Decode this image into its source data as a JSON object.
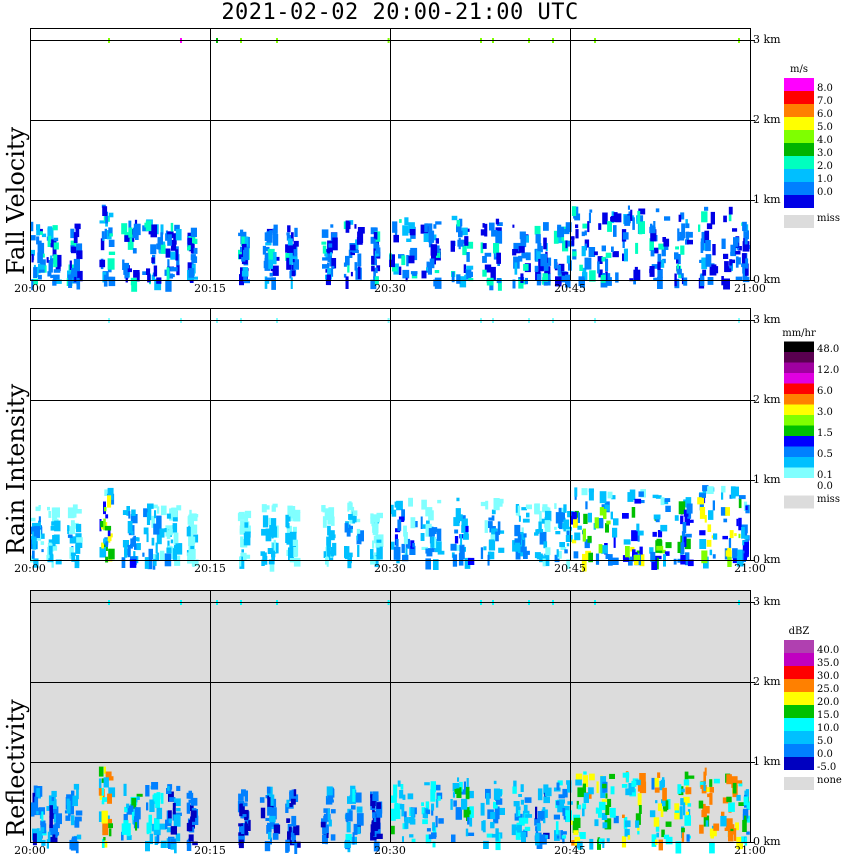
{
  "title": "2021-02-02   20:00-21:00 UTC",
  "x_ticks": [
    "20:00",
    "20:15",
    "20:30",
    "20:45",
    "21:00"
  ],
  "y_ticks": [
    "3 km",
    "2 km",
    "1 km",
    "0 km"
  ],
  "colors": {
    "missing": "#dcdcdc",
    "grid": "#000000"
  },
  "panels": [
    {
      "id": "fall",
      "label": "Fall Velocity",
      "unit": "m/s",
      "background": "#ffffff",
      "colorbar": [
        {
          "label": "8.0",
          "color": "#ff00ff"
        },
        {
          "label": "7.0",
          "color": "#ff0000"
        },
        {
          "label": "6.0",
          "color": "#ff7f00"
        },
        {
          "label": "5.0",
          "color": "#ffff00"
        },
        {
          "label": "4.0",
          "color": "#7fff00"
        },
        {
          "label": "3.0",
          "color": "#00b400"
        },
        {
          "label": "2.0",
          "color": "#00ffbf"
        },
        {
          "label": "1.0",
          "color": "#00bfff"
        },
        {
          "label": "0.0",
          "color": "#007fff"
        },
        {
          "label": "",
          "color": "#0000e6"
        }
      ],
      "miss_label": "miss"
    },
    {
      "id": "rain",
      "label": "Rain Intensity",
      "unit": "mm/hr",
      "background": "#ffffff",
      "colorbar": [
        {
          "label": "48.0",
          "color": "#000000"
        },
        {
          "label": "",
          "color": "#5a0050"
        },
        {
          "label": "12.0",
          "color": "#a000a0"
        },
        {
          "label": "",
          "color": "#e000e0"
        },
        {
          "label": "6.0",
          "color": "#ff0000"
        },
        {
          "label": "",
          "color": "#ff8000"
        },
        {
          "label": "3.0",
          "color": "#ffff00"
        },
        {
          "label": "",
          "color": "#80ff00"
        },
        {
          "label": "1.5",
          "color": "#00c000"
        },
        {
          "label": "",
          "color": "#0000ff"
        },
        {
          "label": "0.5",
          "color": "#0080ff"
        },
        {
          "label": "",
          "color": "#00c0ff"
        },
        {
          "label": "0.1",
          "color": "#80ffff"
        },
        {
          "label": "0.0",
          "color": "#ffffff"
        }
      ],
      "miss_label": "miss"
    },
    {
      "id": "refl",
      "label": "Reflectivity",
      "unit": "dBZ",
      "background": "#dcdcdc",
      "colorbar": [
        {
          "label": "40.0",
          "color": "#b040b0"
        },
        {
          "label": "35.0",
          "color": "#c000c0"
        },
        {
          "label": "30.0",
          "color": "#ff0000"
        },
        {
          "label": "25.0",
          "color": "#ff8000"
        },
        {
          "label": "20.0",
          "color": "#ffff00"
        },
        {
          "label": "15.0",
          "color": "#00c000"
        },
        {
          "label": "10.0",
          "color": "#00ffff"
        },
        {
          "label": "5.0",
          "color": "#00c0ff"
        },
        {
          "label": "0.0",
          "color": "#0080ff"
        },
        {
          "label": "-5.0",
          "color": "#0000c0"
        }
      ],
      "miss_label": "none"
    }
  ],
  "chart_data": {
    "type": "heatmap",
    "title": "2021-02-02   20:00-21:00 UTC",
    "x_range": [
      "20:00",
      "21:00"
    ],
    "y_range_km": [
      0,
      3
    ],
    "x_ticks": [
      "20:00",
      "20:15",
      "20:30",
      "20:45",
      "21:00"
    ],
    "y_ticks_km": [
      0,
      1,
      2,
      3
    ],
    "grid": true,
    "series": [
      {
        "name": "Fall Velocity",
        "unit": "m/s",
        "scale": [
          0,
          1,
          2,
          3,
          4,
          5,
          6,
          7,
          8
        ]
      },
      {
        "name": "Rain Intensity",
        "unit": "mm/hr",
        "scale": [
          0.0,
          0.1,
          0.5,
          1.5,
          3.0,
          6.0,
          12.0,
          48.0
        ]
      },
      {
        "name": "Reflectivity",
        "unit": "dBZ",
        "scale": [
          -5,
          0,
          5,
          10,
          15,
          20,
          25,
          30,
          35,
          40
        ]
      }
    ],
    "echo_top_km_approx": 1.0,
    "strongest_period": [
      "20:45",
      "21:00"
    ]
  }
}
